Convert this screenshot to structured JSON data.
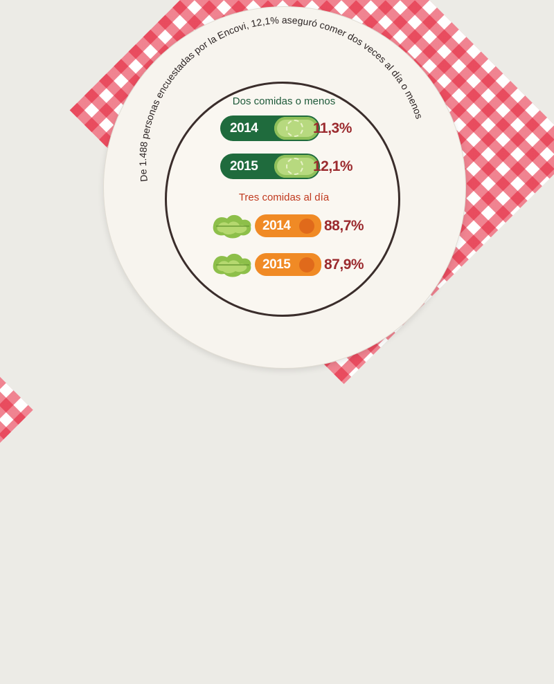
{
  "caption": "De 1.488 personas encuestadas por la Encovi, 12,1% aseguró comer dos veces al día o menos",
  "chart_data": {
    "type": "bar",
    "groups": [
      {
        "title": "Dos comidas o menos",
        "items": [
          {
            "year": "2014",
            "value": 11.3,
            "label": "11,3%"
          },
          {
            "year": "2015",
            "value": 12.1,
            "label": "12,1%"
          }
        ]
      },
      {
        "title": "Tres comidas al día",
        "items": [
          {
            "year": "2014",
            "value": 88.7,
            "label": "88,7%"
          },
          {
            "year": "2015",
            "value": 87.9,
            "label": "87,9%"
          }
        ]
      }
    ]
  },
  "colors": {
    "cucumber": "#1f6b3d",
    "carrot": "#f08a25",
    "value": "#9b2a2e",
    "tablecloth": "#e31e36"
  },
  "icons": {
    "cucumber": "cucumber-icon",
    "carrot": "carrot-icon",
    "lettuce": "lettuce-icon"
  }
}
